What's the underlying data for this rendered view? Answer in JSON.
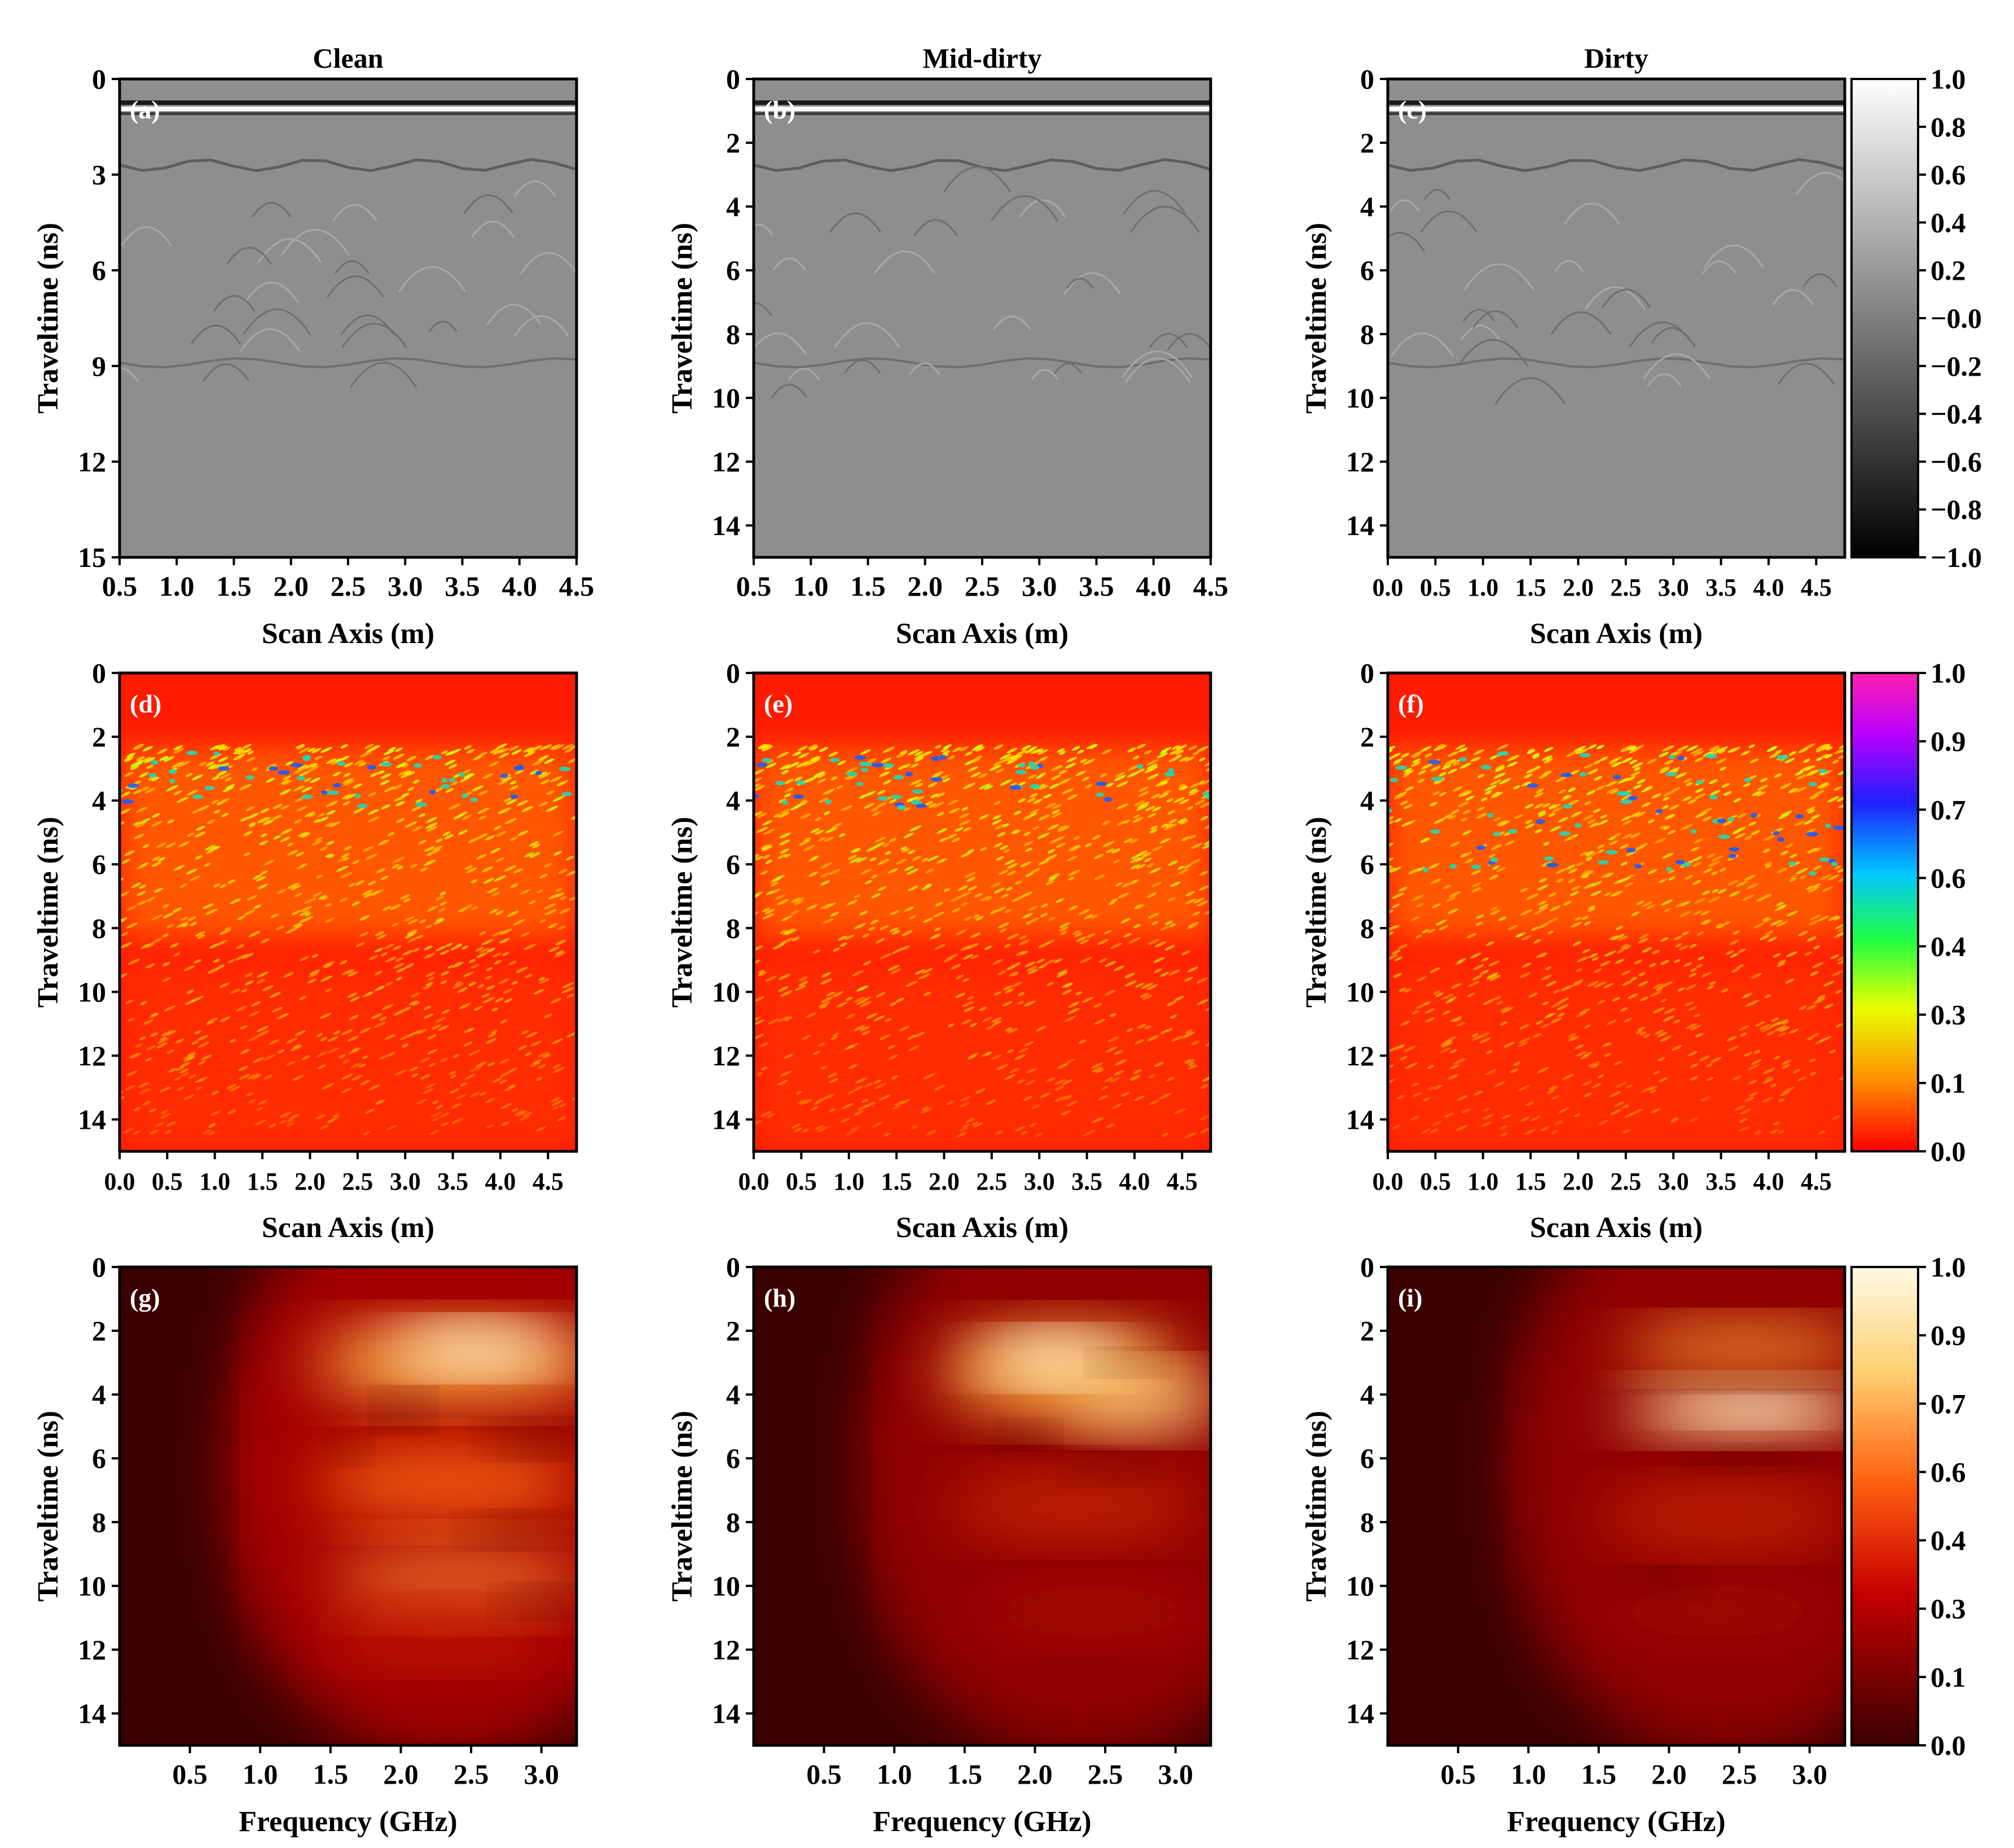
{
  "columns": [
    "Clean",
    "Mid-dirty",
    "Dirty"
  ],
  "chart_data": [
    {
      "type": "heatmap",
      "panel": "(a)",
      "column_title": "Clean",
      "xlabel": "Scan Axis (m)",
      "ylabel": "Traveltime (ns)",
      "xlim": [
        0.5,
        4.5
      ],
      "ylim": [
        15,
        0
      ],
      "xticks": [
        "0.5",
        "1.0",
        "1.5",
        "2.0",
        "2.5",
        "3.0",
        "3.5",
        "4.0",
        "4.5"
      ],
      "yticks": [
        "0",
        "3",
        "6",
        "9",
        "12",
        "15"
      ],
      "colormap": "gray"
    },
    {
      "type": "heatmap",
      "panel": "(b)",
      "column_title": "Mid-dirty",
      "xlabel": "Scan Axis (m)",
      "ylabel": "Traveltime (ns)",
      "xlim": [
        0.5,
        4.5
      ],
      "ylim": [
        15,
        0
      ],
      "xticks": [
        "0.5",
        "1.0",
        "1.5",
        "2.0",
        "2.5",
        "3.0",
        "3.5",
        "4.0",
        "4.5"
      ],
      "yticks": [
        "0",
        "2",
        "4",
        "6",
        "8",
        "10",
        "12",
        "14"
      ],
      "colormap": "gray"
    },
    {
      "type": "heatmap",
      "panel": "(c)",
      "column_title": "Dirty",
      "xlabel": "Scan Axis (m)",
      "ylabel": "Traveltime (ns)",
      "xlim": [
        0,
        4.8
      ],
      "ylim": [
        15,
        0
      ],
      "xticks": [
        "0.0",
        "0.5",
        "1.0",
        "1.5",
        "2.0",
        "2.5",
        "3.0",
        "3.5",
        "4.0",
        "4.5"
      ],
      "yticks": [
        "0",
        "2",
        "4",
        "6",
        "8",
        "10",
        "12",
        "14"
      ],
      "colormap": "gray",
      "colorbar": {
        "ticks": [
          "1.0",
          "0.8",
          "0.6",
          "0.4",
          "0.2",
          "−0.0",
          "−0.2",
          "−0.4",
          "−0.6",
          "−0.8",
          "−1.0"
        ],
        "range": [
          -1,
          1
        ]
      }
    },
    {
      "type": "heatmap",
      "panel": "(d)",
      "xlabel": "Scan Axis (m)",
      "ylabel": "Traveltime (ns)",
      "xlim": [
        0,
        4.8
      ],
      "ylim": [
        15,
        0
      ],
      "xticks": [
        "0.0",
        "0.5",
        "1.0",
        "1.5",
        "2.0",
        "2.5",
        "3.0",
        "3.5",
        "4.0",
        "4.5"
      ],
      "yticks": [
        "0",
        "2",
        "4",
        "6",
        "8",
        "10",
        "12",
        "14"
      ],
      "colormap": "rainbow"
    },
    {
      "type": "heatmap",
      "panel": "(e)",
      "xlabel": "Scan Axis (m)",
      "ylabel": "Traveltime (ns)",
      "xlim": [
        0,
        4.8
      ],
      "ylim": [
        15,
        0
      ],
      "xticks": [
        "0.0",
        "0.5",
        "1.0",
        "1.5",
        "2.0",
        "2.5",
        "3.0",
        "3.5",
        "4.0",
        "4.5"
      ],
      "yticks": [
        "0",
        "2",
        "4",
        "6",
        "8",
        "10",
        "12",
        "14"
      ],
      "colormap": "rainbow"
    },
    {
      "type": "heatmap",
      "panel": "(f)",
      "xlabel": "Scan Axis (m)",
      "ylabel": "Traveltime (ns)",
      "xlim": [
        0,
        4.8
      ],
      "ylim": [
        15,
        0
      ],
      "xticks": [
        "0.0",
        "0.5",
        "1.0",
        "1.5",
        "2.0",
        "2.5",
        "3.0",
        "3.5",
        "4.0",
        "4.5"
      ],
      "yticks": [
        "0",
        "2",
        "4",
        "6",
        "8",
        "10",
        "12",
        "14"
      ],
      "colormap": "rainbow",
      "colorbar": {
        "ticks": [
          "1.0",
          "0.9",
          "0.7",
          "0.6",
          "0.4",
          "0.3",
          "0.1",
          "0.0"
        ],
        "range": [
          0,
          1
        ]
      }
    },
    {
      "type": "heatmap",
      "panel": "(g)",
      "xlabel": "Frequency (GHz)",
      "ylabel": "Traveltime (ns)",
      "xlim": [
        0,
        3.25
      ],
      "ylim": [
        15,
        0
      ],
      "xticks": [
        "0.5",
        "1.0",
        "1.5",
        "2.0",
        "2.5",
        "3.0"
      ],
      "yticks": [
        "0",
        "2",
        "4",
        "6",
        "8",
        "10",
        "12",
        "14"
      ],
      "colormap": "hot"
    },
    {
      "type": "heatmap",
      "panel": "(h)",
      "xlabel": "Frequency (GHz)",
      "ylabel": "Traveltime (ns)",
      "xlim": [
        0,
        3.25
      ],
      "ylim": [
        15,
        0
      ],
      "xticks": [
        "0.5",
        "1.0",
        "1.5",
        "2.0",
        "2.5",
        "3.0"
      ],
      "yticks": [
        "0",
        "2",
        "4",
        "6",
        "8",
        "10",
        "12",
        "14"
      ],
      "colormap": "hot"
    },
    {
      "type": "heatmap",
      "panel": "(i)",
      "xlabel": "Frequency (GHz)",
      "ylabel": "Traveltime (ns)",
      "xlim": [
        0,
        3.25
      ],
      "ylim": [
        15,
        0
      ],
      "xticks": [
        "0.5",
        "1.0",
        "1.5",
        "2.0",
        "2.5",
        "3.0"
      ],
      "yticks": [
        "0",
        "2",
        "4",
        "6",
        "8",
        "10",
        "12",
        "14"
      ],
      "colormap": "hot",
      "colorbar": {
        "ticks": [
          "1.0",
          "0.9",
          "0.7",
          "0.6",
          "0.4",
          "0.3",
          "0.1",
          "0.0"
        ],
        "range": [
          0,
          1
        ]
      }
    }
  ]
}
